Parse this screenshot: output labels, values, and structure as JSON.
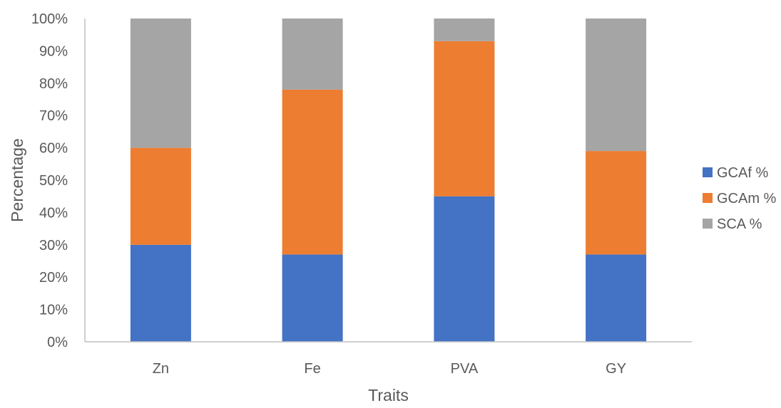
{
  "chart_data": {
    "type": "bar",
    "stacked": "percent",
    "title": "",
    "xlabel": "Traits",
    "ylabel": "Percentage",
    "categories": [
      "Zn",
      "Fe",
      "PVA",
      "GY"
    ],
    "series": [
      {
        "name": "GCAf %",
        "color": "#4472C4",
        "values": [
          30,
          27,
          45,
          27
        ]
      },
      {
        "name": "GCAm %",
        "color": "#ED7D31",
        "values": [
          30,
          51,
          48,
          32
        ]
      },
      {
        "name": "SCA %",
        "color": "#A5A5A5",
        "values": [
          40,
          22,
          7,
          41
        ]
      }
    ],
    "ylim": [
      0,
      100
    ],
    "yticks": [
      "0%",
      "10%",
      "20%",
      "30%",
      "40%",
      "50%",
      "60%",
      "70%",
      "80%",
      "90%",
      "100%"
    ],
    "grid": false,
    "legend_position": "right"
  }
}
